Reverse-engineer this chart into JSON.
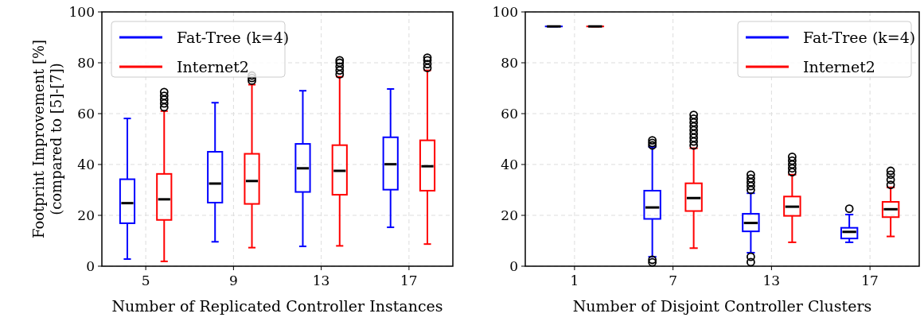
{
  "chart_data": [
    {
      "type": "box",
      "xlabel": "Number of Replicated Controller Instances",
      "ylabel": "Footprint Improvement [%]\n(compared to [5]-[7])",
      "categories": [
        "5",
        "9",
        "13",
        "17"
      ],
      "ylim": [
        0,
        100
      ],
      "yticks": [
        0,
        20,
        40,
        60,
        80,
        100
      ],
      "grid": true,
      "legend": "top left",
      "marker": "circle",
      "series": [
        {
          "name": "Fat-Tree (k=4)",
          "color": "#0000ff",
          "boxes": [
            {
              "low": 2.8,
              "q1": 16.9,
              "median": 24.8,
              "q3": 34.2,
              "high": 58.1
            },
            {
              "low": 9.6,
              "q1": 25,
              "median": 32.5,
              "q3": 45,
              "high": 64.3
            },
            {
              "low": 7.8,
              "q1": 29.2,
              "median": 38.5,
              "q3": 48.1,
              "high": 69
            },
            {
              "low": 15.3,
              "q1": 30.1,
              "median": 40.1,
              "q3": 50.7,
              "high": 69.7
            }
          ]
        },
        {
          "name": "Internet2",
          "color": "#ff0000",
          "boxes": [
            {
              "low": 1.9,
              "q1": 18.2,
              "median": 26.3,
              "q3": 36.3,
              "high": 61,
              "outliers": [
                62.5,
                64,
                65.5,
                67,
                68.5
              ]
            },
            {
              "low": 7.3,
              "q1": 24.5,
              "median": 33.5,
              "q3": 44.2,
              "high": 71.4,
              "outliers": [
                73,
                74,
                75
              ]
            },
            {
              "low": 8,
              "q1": 28.1,
              "median": 37.5,
              "q3": 47.6,
              "high": 74.5,
              "outliers": [
                75.5,
                77,
                78.5,
                80,
                81
              ]
            },
            {
              "low": 8.7,
              "q1": 29.7,
              "median": 39.3,
              "q3": 49.5,
              "high": 77,
              "outliers": [
                78,
                79.5,
                81,
                82
              ]
            }
          ]
        }
      ]
    },
    {
      "type": "box",
      "xlabel": "Number of Disjoint Controller Clusters",
      "categories": [
        "1",
        "7",
        "13",
        "17"
      ],
      "ylim": [
        0,
        100
      ],
      "yticks": [
        0,
        20,
        40,
        60,
        80,
        100
      ],
      "grid": true,
      "legend": "top right",
      "marker": "circle",
      "series": [
        {
          "name": "Fat-Tree (k=4)",
          "color": "#0000ff",
          "boxes": [
            {
              "low": 94.3,
              "q1": 94.3,
              "median": 94.3,
              "q3": 94.3,
              "high": 94.3
            },
            {
              "low": 3.7,
              "q1": 18.6,
              "median": 23.1,
              "q3": 29.7,
              "high": 46.9,
              "outliers": [
                1.5,
                2.5,
                47.5,
                48.5,
                49.5
              ]
            },
            {
              "low": 5.3,
              "q1": 13.7,
              "median": 17,
              "q3": 20.6,
              "high": 28.7,
              "outliers": [
                1.6,
                3.7,
                30,
                31.5,
                33,
                34.5,
                36
              ]
            },
            {
              "low": 9.4,
              "q1": 10.9,
              "median": 13.5,
              "q3": 15.1,
              "high": 20.3,
              "outliers": [
                22.6
              ]
            }
          ]
        },
        {
          "name": "Internet2",
          "color": "#ff0000",
          "boxes": [
            {
              "low": 94.3,
              "q1": 94.3,
              "median": 94.3,
              "q3": 94.3,
              "high": 94.3
            },
            {
              "low": 7.1,
              "q1": 21.7,
              "median": 26.8,
              "q3": 32.6,
              "high": 46.4,
              "outliers": [
                47.5,
                49,
                50.5,
                52,
                53.5,
                55,
                56.5,
                58,
                59.5
              ]
            },
            {
              "low": 9.4,
              "q1": 19.8,
              "median": 23.4,
              "q3": 27.4,
              "high": 36,
              "outliers": [
                37,
                38.5,
                40,
                41.5,
                43
              ]
            },
            {
              "low": 11.7,
              "q1": 19.3,
              "median": 22.4,
              "q3": 25.3,
              "high": 31,
              "outliers": [
                32,
                34,
                36,
                37.5
              ]
            }
          ]
        }
      ]
    }
  ]
}
